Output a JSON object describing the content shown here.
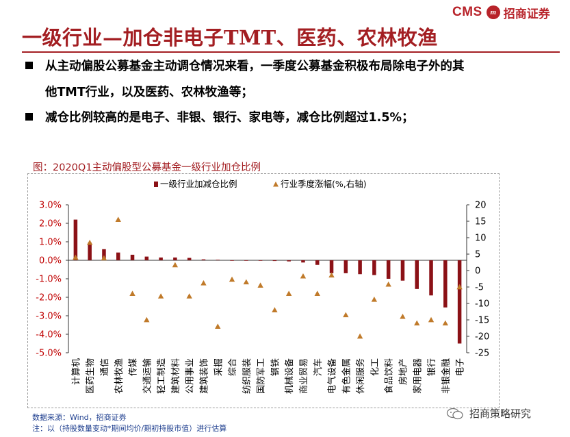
{
  "header": {
    "logo_text": "CMS",
    "logo_mark": "m",
    "logo_cn": "招商证券",
    "title": "一级行业—加仓非电子TMT、医药、农林牧渔"
  },
  "bullets": [
    {
      "line1_a": "从主动偏股公募基金主动调仓情况来看，一季度",
      "line1_b": "公募基金积极布局除电子外的其",
      "line2": "他TMT行业，以及医药、农林牧渔等；"
    },
    {
      "line1_a": "减仓比例较高的是电子、非银、银行、家电等，减仓比例超过",
      "line1_b": "1.5%；"
    }
  ],
  "chart_title": "图：2020Q1主动偏股型公募基金一级行业加仓比例",
  "chart_data": {
    "type": "bar",
    "legend": [
      "一级行业加减仓比例",
      "行业季度涨幅(%,右轴)"
    ],
    "legend_position": "top-center",
    "categories": [
      "计算机",
      "医药生物",
      "通信",
      "农林牧渔",
      "传媒",
      "交通运输",
      "轻工制造",
      "建筑材料",
      "公用事业",
      "建筑装饰",
      "采掘",
      "综合",
      "纺织服装",
      "国防军工",
      "钢铁",
      "机械设备",
      "商业贸易",
      "汽车",
      "电气设备",
      "有色金属",
      "休闲服务",
      "化工",
      "食品饮料",
      "房地产",
      "家用电器",
      "银行",
      "非银金融",
      "电子"
    ],
    "series": [
      {
        "name": "一级行业加减仓比例",
        "type": "bar",
        "axis": "left",
        "color": "#8b1116",
        "values": [
          2.2,
          0.95,
          0.6,
          0.42,
          0.3,
          0.2,
          0.15,
          0.15,
          0.13,
          0.05,
          0.03,
          -0.02,
          -0.03,
          -0.03,
          -0.04,
          -0.06,
          -0.12,
          -0.25,
          -0.7,
          -0.7,
          -0.75,
          -0.8,
          -1.0,
          -1.1,
          -1.55,
          -1.9,
          -2.55,
          -4.5
        ]
      },
      {
        "name": "行业季度涨幅(%,右轴)",
        "type": "scatter",
        "axis": "right",
        "color": "#c07a2a",
        "values": [
          4,
          8.5,
          3.8,
          15.5,
          -7,
          -15,
          -7.8,
          1.7,
          -7.8,
          -3.8,
          -17,
          -2.7,
          -3.5,
          -4.5,
          -12,
          -7,
          -1.7,
          -7,
          -1.4,
          -13.5,
          -20,
          -8.8,
          -4.2,
          -14,
          -16,
          -15,
          -16,
          -5
        ]
      }
    ],
    "y_left": {
      "min": -5.0,
      "max": 3.0,
      "ticks": [
        "3.0%",
        "2.0%",
        "1.0%",
        "0.0%",
        "-1.0%",
        "-2.0%",
        "-3.0%",
        "-4.0%",
        "-5.0%"
      ]
    },
    "y_right": {
      "min": -25,
      "max": 20,
      "ticks": [
        "20",
        "15",
        "10",
        "5",
        "0",
        "-5",
        "-10",
        "-15",
        "-20",
        "-25"
      ]
    },
    "grid": false
  },
  "notes": {
    "source": "数据来源：Wind，招商证券",
    "footnote": "注：以（持股数量变动*期间均价/期初持股市值）进行估算"
  },
  "watermark": "招商策略研究"
}
